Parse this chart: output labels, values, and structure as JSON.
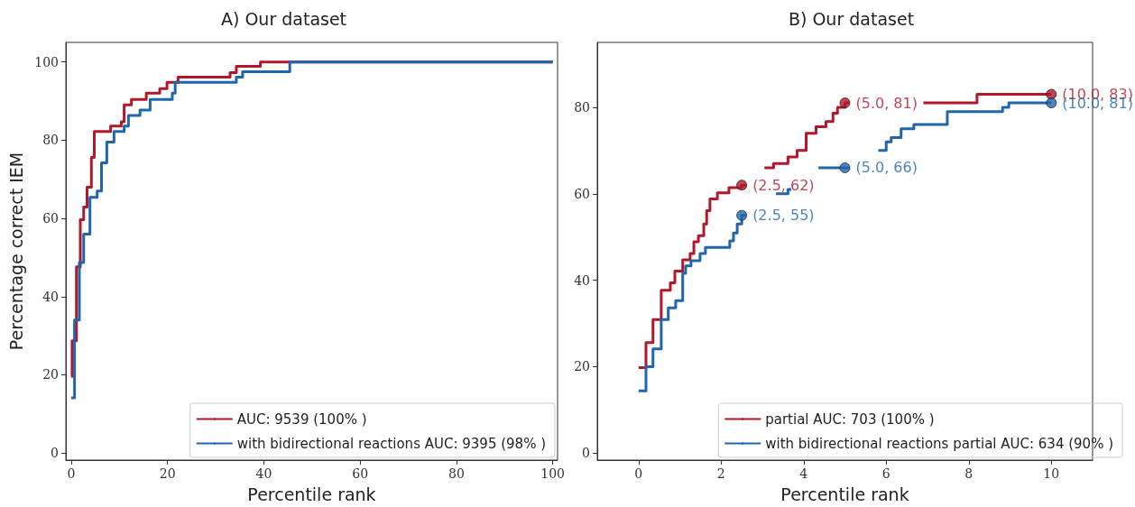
{
  "chart_data": [
    {
      "type": "step",
      "title": "A) Our dataset",
      "xlabel": "Percentile rank",
      "ylabel": "Percentage correct IEM",
      "xlim": [
        -1.1,
        101
      ],
      "ylim": [
        -1.8,
        105
      ],
      "xticks": [
        0,
        20,
        40,
        60,
        80,
        100
      ],
      "yticks": [
        0,
        20,
        40,
        60,
        80,
        100
      ],
      "grid": false,
      "legend": "bottom right",
      "marker": "none",
      "line_style": "solid",
      "series": [
        {
          "name": "AUC: 9539 (100% )",
          "color": "#b2182b",
          "x": [
            0,
            0.2,
            1.1,
            1.9,
            2.6,
            3.3,
            4.2,
            4.8,
            8.2,
            10.4,
            11,
            12.5,
            15.6,
            18.4,
            19.9,
            22.2,
            33,
            34.3,
            39.3,
            100
          ],
          "values": [
            19.6,
            28.7,
            47.6,
            59.7,
            62.9,
            68,
            75.6,
            82.2,
            83.6,
            84.7,
            89,
            90.4,
            92,
            93.2,
            94.8,
            96.1,
            97.3,
            98.9,
            100,
            100
          ]
        },
        {
          "name": "with bidirectional reactions AUC: 9395 (98% )",
          "color": "#2166ac",
          "x": [
            0,
            0.2,
            0.7,
            1.7,
            2.6,
            3.9,
            5.4,
            6.3,
            7.4,
            8.9,
            11,
            11.9,
            14.3,
            16.4,
            21,
            21.6,
            34.3,
            35.6,
            45.4,
            100
          ],
          "values": [
            14.1,
            14.1,
            34,
            48.7,
            56,
            65.4,
            67,
            74.2,
            79.5,
            82.2,
            83.6,
            86.3,
            87.7,
            90.4,
            92,
            94.8,
            96.1,
            97.5,
            100,
            100
          ]
        }
      ]
    },
    {
      "type": "step",
      "title": "B) Our dataset",
      "xlabel": "Percentile rank",
      "xlim": [
        -1,
        11
      ],
      "ylim": [
        -1.6,
        95
      ],
      "xticks": [
        0,
        2,
        4,
        6,
        8,
        10
      ],
      "yticks": [
        0,
        20,
        40,
        60,
        80
      ],
      "grid": false,
      "legend": "bottom right",
      "marker": "none",
      "line_style": "solid",
      "series": [
        {
          "name": "partial AUC: 703 (100% )",
          "color": "#b2182b",
          "x": [
            0,
            0.18,
            0.35,
            0.55,
            0.77,
            0.88,
            1.07,
            1.25,
            1.34,
            1.45,
            1.58,
            1.65,
            1.73,
            1.91,
            2.19,
            2.5,
            2.55,
            2.6,
            3.05,
            3.27,
            3.62,
            3.84,
            4.06,
            4.3,
            4.54,
            4.71,
            4.82,
            5.0,
            5.05,
            5.1,
            6.9,
            8.2,
            10
          ],
          "values": [
            19.8,
            25.6,
            30.9,
            37.7,
            39.4,
            42.1,
            44.7,
            46.2,
            48.9,
            50.3,
            53,
            56.1,
            58.8,
            60.2,
            61.4,
            62,
            62,
            null,
            66,
            67,
            68.5,
            70,
            74,
            75.5,
            76.7,
            78.6,
            80,
            81,
            81,
            null,
            81,
            83,
            83
          ]
        },
        {
          "name": "with bidirectional reactions partial AUC: 634 (90% )",
          "color": "#2166ac",
          "x": [
            0,
            0.18,
            0.35,
            0.55,
            0.72,
            0.9,
            1.07,
            1.14,
            1.27,
            1.49,
            1.62,
            2.21,
            2.3,
            2.39,
            2.5,
            2.55,
            2.6,
            3.33,
            3.62,
            3.7,
            4.36,
            5.0,
            5.05,
            5.1,
            5.81,
            6.0,
            6.12,
            6.36,
            6.67,
            7.48,
            8.82,
            8.97,
            10
          ],
          "values": [
            14.4,
            20,
            24.1,
            30.9,
            33.6,
            35.3,
            41.6,
            43.3,
            44.5,
            46.2,
            47.6,
            49.1,
            50.9,
            53,
            55,
            55,
            null,
            60,
            61,
            null,
            66,
            66,
            66,
            null,
            70,
            72,
            73,
            75,
            76,
            79,
            80,
            81,
            81
          ]
        }
      ],
      "annotations": [
        {
          "text": "(2.5, 62)",
          "x": 2.5,
          "y": 62
        },
        {
          "text": "(2.5, 55)",
          "x": 2.5,
          "y": 55
        },
        {
          "text": "(5.0, 81)",
          "x": 5.0,
          "y": 81
        },
        {
          "text": "(5.0, 66)",
          "x": 5.0,
          "y": 66
        },
        {
          "text": "(10.0, 83)",
          "x": 10,
          "y": 83
        },
        {
          "text": "(10.0, 81)",
          "x": 10,
          "y": 81
        }
      ]
    }
  ]
}
